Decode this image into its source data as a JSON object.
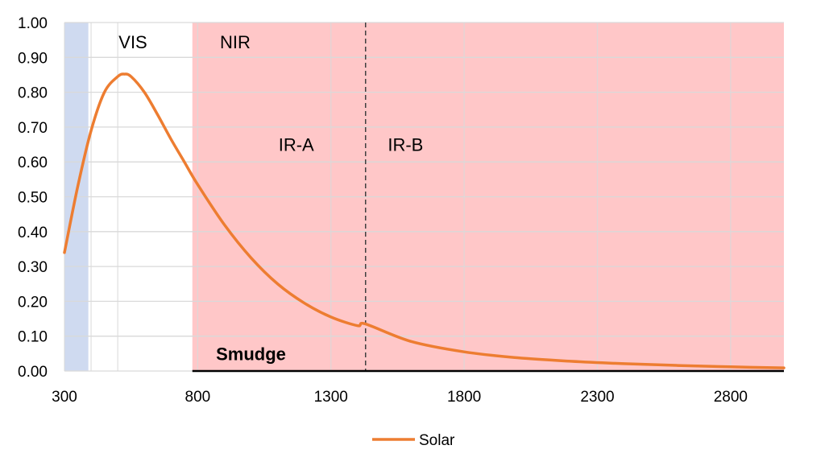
{
  "chart_data": {
    "type": "line",
    "title": "",
    "xlabel": "",
    "ylabel": "",
    "xlim": [
      300,
      3000
    ],
    "ylim": [
      0,
      1
    ],
    "x_ticks": [
      300,
      800,
      1300,
      1800,
      2300,
      2800
    ],
    "x_tick_labels": [
      "300",
      "800",
      "1300",
      "1800",
      "2300",
      "2800"
    ],
    "y_ticks": [
      0,
      0.1,
      0.2,
      0.3,
      0.4,
      0.5,
      0.6,
      0.7,
      0.8,
      0.9,
      1.0
    ],
    "y_tick_labels": [
      "0.00",
      "0.10",
      "0.20",
      "0.30",
      "0.40",
      "0.50",
      "0.60",
      "0.70",
      "0.80",
      "0.90",
      "1.00"
    ],
    "vertical_gridlines": [
      300,
      400,
      500,
      800,
      1300,
      1800,
      2300,
      2800
    ],
    "grid": true,
    "legend": "bottom",
    "series": [
      {
        "name": "Solar",
        "color": "#ED7D31",
        "x": [
          300,
          350,
          400,
          450,
          500,
          525,
          550,
          600,
          650,
          700,
          750,
          800,
          900,
          1000,
          1100,
          1200,
          1300,
          1400,
          1430,
          1600,
          1800,
          2000,
          2200,
          2400,
          2600,
          2800,
          3000
        ],
        "y": [
          0.34,
          0.53,
          0.69,
          0.8,
          0.845,
          0.852,
          0.845,
          0.8,
          0.735,
          0.665,
          0.6,
          0.535,
          0.42,
          0.325,
          0.25,
          0.195,
          0.155,
          0.13,
          0.135,
          0.085,
          0.055,
          0.038,
          0.028,
          0.021,
          0.016,
          0.012,
          0.009
        ]
      }
    ],
    "regions": [
      {
        "label": "",
        "from": 300,
        "to": 390,
        "color": "#CFDAF0"
      },
      {
        "label": "VIS",
        "from": 390,
        "to": 780,
        "color": "#FFFFFF"
      },
      {
        "label": "NIR",
        "from": 780,
        "to": 3000,
        "color": "#FFC7C8"
      }
    ],
    "sub_region_labels": [
      {
        "label": "IR-A",
        "x": 1170,
        "y": 0.65
      },
      {
        "label": "IR-B",
        "x": 1580,
        "y": 0.65
      }
    ],
    "region_label_y": 0.945,
    "divider": {
      "x": 1430,
      "style": "dashed"
    },
    "annotations": [
      {
        "text": "Smudge",
        "x": 1000,
        "y": 0.05,
        "bold": true
      }
    ],
    "baseline_line": {
      "from": 780,
      "to": 3000,
      "y": 0
    }
  }
}
